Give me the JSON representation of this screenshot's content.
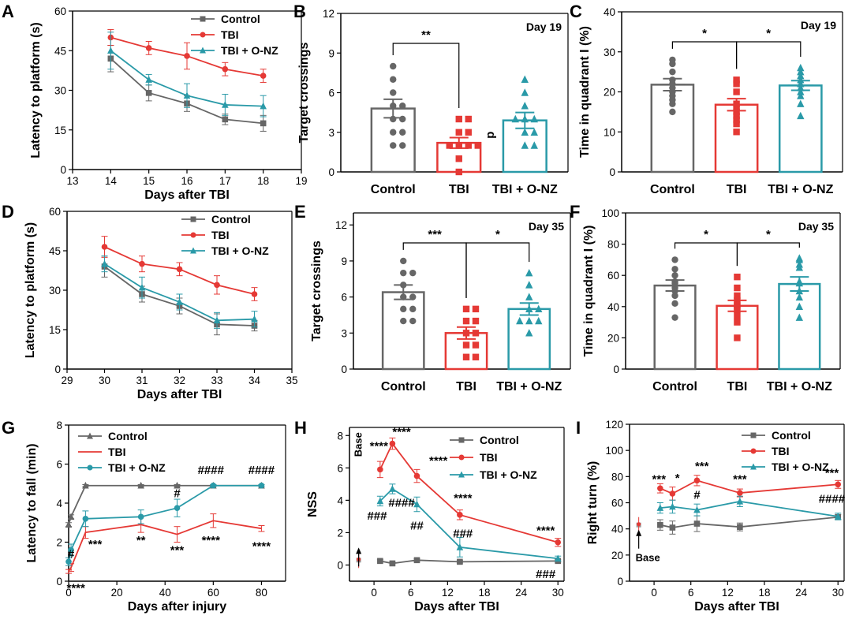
{
  "colors": {
    "Control": "#666666",
    "TBI": "#e53935",
    "TBI + O-NZ": "#2a9aa8"
  },
  "chart_data": [
    {
      "id": "A",
      "type": "line",
      "panel_label": "A",
      "xlabel": "Days after TBI",
      "ylabel": "Latency to platform (s)",
      "xlim": [
        13,
        19
      ],
      "ylim": [
        0,
        60
      ],
      "xticks": [
        "13",
        "14",
        "15",
        "16",
        "17",
        "18",
        "19"
      ],
      "yticks": [
        "0",
        "15",
        "30",
        "45",
        "60"
      ],
      "x": [
        14,
        15,
        16,
        17,
        18
      ],
      "legend": "top-right",
      "series": [
        {
          "name": "Control",
          "values": [
            42,
            29,
            25,
            19,
            17.5
          ],
          "err": [
            5,
            3,
            3,
            2,
            3
          ],
          "marker": "square"
        },
        {
          "name": "TBI",
          "values": [
            50,
            46,
            43,
            38,
            35.5
          ],
          "err": [
            3,
            2.5,
            5,
            2.5,
            2.5
          ],
          "marker": "circle"
        },
        {
          "name": "TBI + O-NZ",
          "values": [
            45,
            34,
            28,
            24.5,
            24
          ],
          "err": [
            7,
            2,
            4.5,
            4,
            4
          ],
          "marker": "triangle"
        }
      ]
    },
    {
      "id": "B",
      "type": "bar",
      "panel_label": "B",
      "tag": "Day 19",
      "ylabel": "Target crossings",
      "ylim": [
        0,
        12
      ],
      "yticks": [
        "0",
        "3",
        "6",
        "9",
        "12"
      ],
      "categories": [
        "Control",
        "TBI",
        "TBI + O-NZ"
      ],
      "values": [
        4.8,
        2.2,
        3.9
      ],
      "err": [
        0.7,
        0.4,
        0.6
      ],
      "points": [
        [
          8,
          7,
          6,
          5,
          5,
          4,
          4,
          3,
          3,
          2,
          2
        ],
        [
          4,
          4,
          3,
          3,
          2,
          2,
          2,
          2,
          1,
          0
        ],
        [
          7,
          6,
          5,
          4,
          4,
          4,
          3,
          3,
          2,
          2
        ]
      ],
      "brackets": [
        {
          "from": 0,
          "to": 1,
          "label": "**"
        }
      ],
      "annotations": [
        {
          "text": "p",
          "category": 2
        }
      ]
    },
    {
      "id": "C",
      "type": "bar",
      "panel_label": "C",
      "tag": "Day 19",
      "ylabel": "Time in quadrant I (%)",
      "ylim": [
        0,
        40
      ],
      "yticks": [
        "0",
        "10",
        "20",
        "30",
        "40"
      ],
      "categories": [
        "Control",
        "TBI",
        "TBI + O-NZ"
      ],
      "values": [
        21.8,
        16.8,
        21.6
      ],
      "err": [
        1.5,
        1.5,
        1.2
      ],
      "points": [
        [
          28,
          27,
          25,
          23,
          22,
          21,
          20,
          19,
          18,
          17,
          15
        ],
        [
          23,
          22,
          20,
          17,
          16,
          15,
          14,
          13,
          12,
          10
        ],
        [
          26,
          25,
          24,
          23,
          22,
          21,
          20,
          19,
          17,
          14
        ]
      ],
      "brackets": [
        {
          "from": 0,
          "to": 1,
          "label": "*"
        },
        {
          "from": 1,
          "to": 2,
          "label": "*"
        }
      ]
    },
    {
      "id": "D",
      "type": "line",
      "panel_label": "D",
      "xlabel": "Days after TBI",
      "ylabel": "Latency to platform (s)",
      "xlim": [
        29,
        35
      ],
      "ylim": [
        0,
        60
      ],
      "xticks": [
        "29",
        "30",
        "31",
        "32",
        "33",
        "34",
        "35"
      ],
      "yticks": [
        "0",
        "15",
        "30",
        "45",
        "60"
      ],
      "x": [
        30,
        31,
        32,
        33,
        34
      ],
      "legend": "top-right",
      "series": [
        {
          "name": "Control",
          "values": [
            39,
            28.5,
            24,
            17,
            16.5
          ],
          "err": [
            4,
            3,
            3,
            4,
            2
          ],
          "marker": "square"
        },
        {
          "name": "TBI",
          "values": [
            46.5,
            40,
            38,
            32,
            28.5
          ],
          "err": [
            4,
            3,
            2.5,
            3.5,
            2.5
          ],
          "marker": "circle"
        },
        {
          "name": "TBI + O-NZ",
          "values": [
            40,
            31,
            25.5,
            18.5,
            19
          ],
          "err": [
            3,
            4,
            3,
            3,
            3
          ],
          "marker": "triangle"
        }
      ]
    },
    {
      "id": "E",
      "type": "bar",
      "panel_label": "E",
      "tag": "Day 35",
      "ylabel": "Target crossings",
      "ylim": [
        0,
        13
      ],
      "yticks": [
        "0",
        "3",
        "6",
        "9",
        "12"
      ],
      "categories": [
        "Control",
        "TBI",
        "TBI + O-NZ"
      ],
      "values": [
        6.4,
        3.0,
        5.0
      ],
      "err": [
        0.6,
        0.5,
        0.5
      ],
      "points": [
        [
          9,
          8,
          8,
          7,
          6,
          6,
          5,
          5,
          4,
          4
        ],
        [
          5,
          5,
          4,
          4,
          3,
          3,
          2,
          2,
          1,
          1
        ],
        [
          8,
          7,
          6,
          5,
          5,
          4,
          4,
          4,
          3
        ]
      ],
      "brackets": [
        {
          "from": 0,
          "to": 1,
          "label": "***"
        },
        {
          "from": 1,
          "to": 2,
          "label": "*"
        }
      ]
    },
    {
      "id": "F",
      "type": "bar",
      "panel_label": "F",
      "tag": "Day 35",
      "ylabel": "Time in quadrant I (%)",
      "ylim": [
        0,
        100
      ],
      "yticks": [
        "0",
        "20",
        "40",
        "60",
        "80",
        "100"
      ],
      "categories": [
        "Control",
        "TBI",
        "TBI + O-NZ"
      ],
      "values": [
        53.5,
        40.5,
        54.5
      ],
      "err": [
        3.5,
        3.5,
        4.5
      ],
      "points": [
        [
          70,
          64,
          60,
          56,
          55,
          52,
          50,
          47,
          42,
          33
        ],
        [
          59,
          52,
          47,
          44,
          41,
          40,
          38,
          34,
          30,
          20
        ],
        [
          71,
          70,
          67,
          65,
          56,
          55,
          50,
          46,
          40,
          33
        ]
      ],
      "brackets": [
        {
          "from": 0,
          "to": 1,
          "label": "*"
        },
        {
          "from": 1,
          "to": 2,
          "label": "*"
        }
      ]
    },
    {
      "id": "G",
      "type": "line",
      "panel_label": "G",
      "xlabel": "Days after injury",
      "ylabel": "Latency to fall (min)",
      "xlim": [
        0,
        90
      ],
      "ylim": [
        0,
        8
      ],
      "xticks": [
        "0",
        "20",
        "40",
        "60",
        "80"
      ],
      "yticks": [
        "0",
        "2",
        "4",
        "6",
        "8"
      ],
      "x": [
        0,
        1,
        7,
        30,
        45,
        60,
        80
      ],
      "legend": "top-left",
      "series": [
        {
          "name": "Control",
          "values": [
            2.9,
            3.3,
            4.9,
            4.9,
            4.9,
            4.9,
            4.9
          ],
          "err": [
            0.1,
            0.1,
            0.05,
            0.05,
            0.05,
            0.05,
            0.05
          ],
          "marker": "triangle"
        },
        {
          "name": "TBI",
          "values": [
            0.5,
            0.7,
            2.5,
            2.9,
            2.4,
            3.1,
            2.7
          ],
          "err": [
            0.1,
            0.2,
            0.3,
            0.4,
            0.4,
            0.35,
            0.15
          ],
          "marker": "none"
        },
        {
          "name": "TBI + O-NZ",
          "values": [
            1.0,
            1.6,
            3.2,
            3.3,
            3.75,
            4.9,
            4.9
          ],
          "err": [
            0.2,
            0.3,
            0.4,
            0.35,
            0.45,
            0.05,
            0.05
          ],
          "marker": "circle"
        }
      ],
      "annotations": [
        {
          "text": "#",
          "x": 1,
          "y": 1.2
        },
        {
          "text": "****",
          "x": 3,
          "y": -0.55
        },
        {
          "text": "***",
          "x": 11,
          "y": 1.7
        },
        {
          "text": "**",
          "x": 30,
          "y": 1.9
        },
        {
          "text": "#",
          "x": 45,
          "y": 4.3
        },
        {
          "text": "***",
          "x": 45,
          "y": 1.4
        },
        {
          "text": "####",
          "x": 59,
          "y": 5.5
        },
        {
          "text": "****",
          "x": 59,
          "y": 1.9
        },
        {
          "text": "####",
          "x": 80,
          "y": 5.5
        },
        {
          "text": "****",
          "x": 80,
          "y": 1.6
        }
      ]
    },
    {
      "id": "H",
      "type": "line",
      "panel_label": "H",
      "xlabel": "Days after TBI",
      "ylabel": "NSS",
      "xlim": [
        -4,
        31
      ],
      "ylim": [
        -1,
        8.5
      ],
      "xticks": [
        "0",
        "6",
        "12",
        "18",
        "24",
        "30"
      ],
      "yticks": [
        "0",
        "2",
        "4",
        "6",
        "8"
      ],
      "x": [
        1,
        3,
        7,
        14,
        30
      ],
      "legend": "top-right",
      "baseline": {
        "label": "Base",
        "x": -2.5,
        "value": 0.3
      },
      "series": [
        {
          "name": "Control",
          "values": [
            0.25,
            0.1,
            0.3,
            0.2,
            0.25
          ],
          "err": [
            0.08,
            0.08,
            0.08,
            0.08,
            0.08
          ],
          "marker": "square"
        },
        {
          "name": "TBI",
          "values": [
            5.9,
            7.5,
            5.5,
            3.1,
            1.4
          ],
          "err": [
            0.5,
            0.35,
            0.4,
            0.3,
            0.25
          ],
          "marker": "circle"
        },
        {
          "name": "TBI + O-NZ",
          "values": [
            3.95,
            4.7,
            3.75,
            1.1,
            0.4
          ],
          "err": [
            0.3,
            0.3,
            0.45,
            0.6,
            0.15
          ],
          "marker": "triangle"
        }
      ],
      "annotations": [
        {
          "text": "****",
          "x": 4.5,
          "y": 8.0
        },
        {
          "text": "****",
          "x": 0.8,
          "y": 7.1
        },
        {
          "text": "####",
          "x": 4.5,
          "y": 3.6
        },
        {
          "text": "###",
          "x": 0.5,
          "y": 2.8
        },
        {
          "text": "****",
          "x": 10.5,
          "y": 6.2
        },
        {
          "text": "##",
          "x": 7,
          "y": 2.2
        },
        {
          "text": "****",
          "x": 14.5,
          "y": 3.9
        },
        {
          "text": "###",
          "x": 14.5,
          "y": 1.7
        },
        {
          "text": "****",
          "x": 28,
          "y": 1.9
        },
        {
          "text": "###",
          "x": 28,
          "y": -0.8
        }
      ]
    },
    {
      "id": "I",
      "type": "line",
      "panel_label": "I",
      "xlabel": "Days after TBI",
      "ylabel": "Right turn (%)",
      "xlim": [
        -4,
        31
      ],
      "ylim": [
        0,
        120
      ],
      "xticks": [
        "0",
        "6",
        "12",
        "18",
        "24",
        "30"
      ],
      "yticks": [
        "0",
        "20",
        "40",
        "60",
        "80",
        "100",
        "120"
      ],
      "x": [
        1,
        3,
        7,
        14,
        30
      ],
      "legend": "top-right",
      "baseline": {
        "label": "Base",
        "x": -2.5,
        "value": 43
      },
      "series": [
        {
          "name": "Control",
          "values": [
            43,
            41,
            44,
            41.5,
            49
          ],
          "err": [
            4,
            5,
            6,
            3,
            2
          ],
          "marker": "square"
        },
        {
          "name": "TBI",
          "values": [
            71,
            67,
            77,
            67.5,
            74
          ],
          "err": [
            3.5,
            5,
            4,
            3,
            3
          ],
          "marker": "circle"
        },
        {
          "name": "TBI + O-NZ",
          "values": [
            56,
            57,
            54.5,
            61,
            49.5
          ],
          "err": [
            4,
            5,
            4.5,
            4,
            2.5
          ],
          "marker": "triangle"
        }
      ],
      "annotations": [
        {
          "text": "***",
          "x": 0.8,
          "y": 75
        },
        {
          "text": "*",
          "x": 3.8,
          "y": 76
        },
        {
          "text": "***",
          "x": 7.8,
          "y": 85
        },
        {
          "text": "#",
          "x": 7,
          "y": 63
        },
        {
          "text": "***",
          "x": 14,
          "y": 75
        },
        {
          "text": "***",
          "x": 29,
          "y": 80
        },
        {
          "text": "####",
          "x": 29,
          "y": 60
        }
      ]
    }
  ]
}
